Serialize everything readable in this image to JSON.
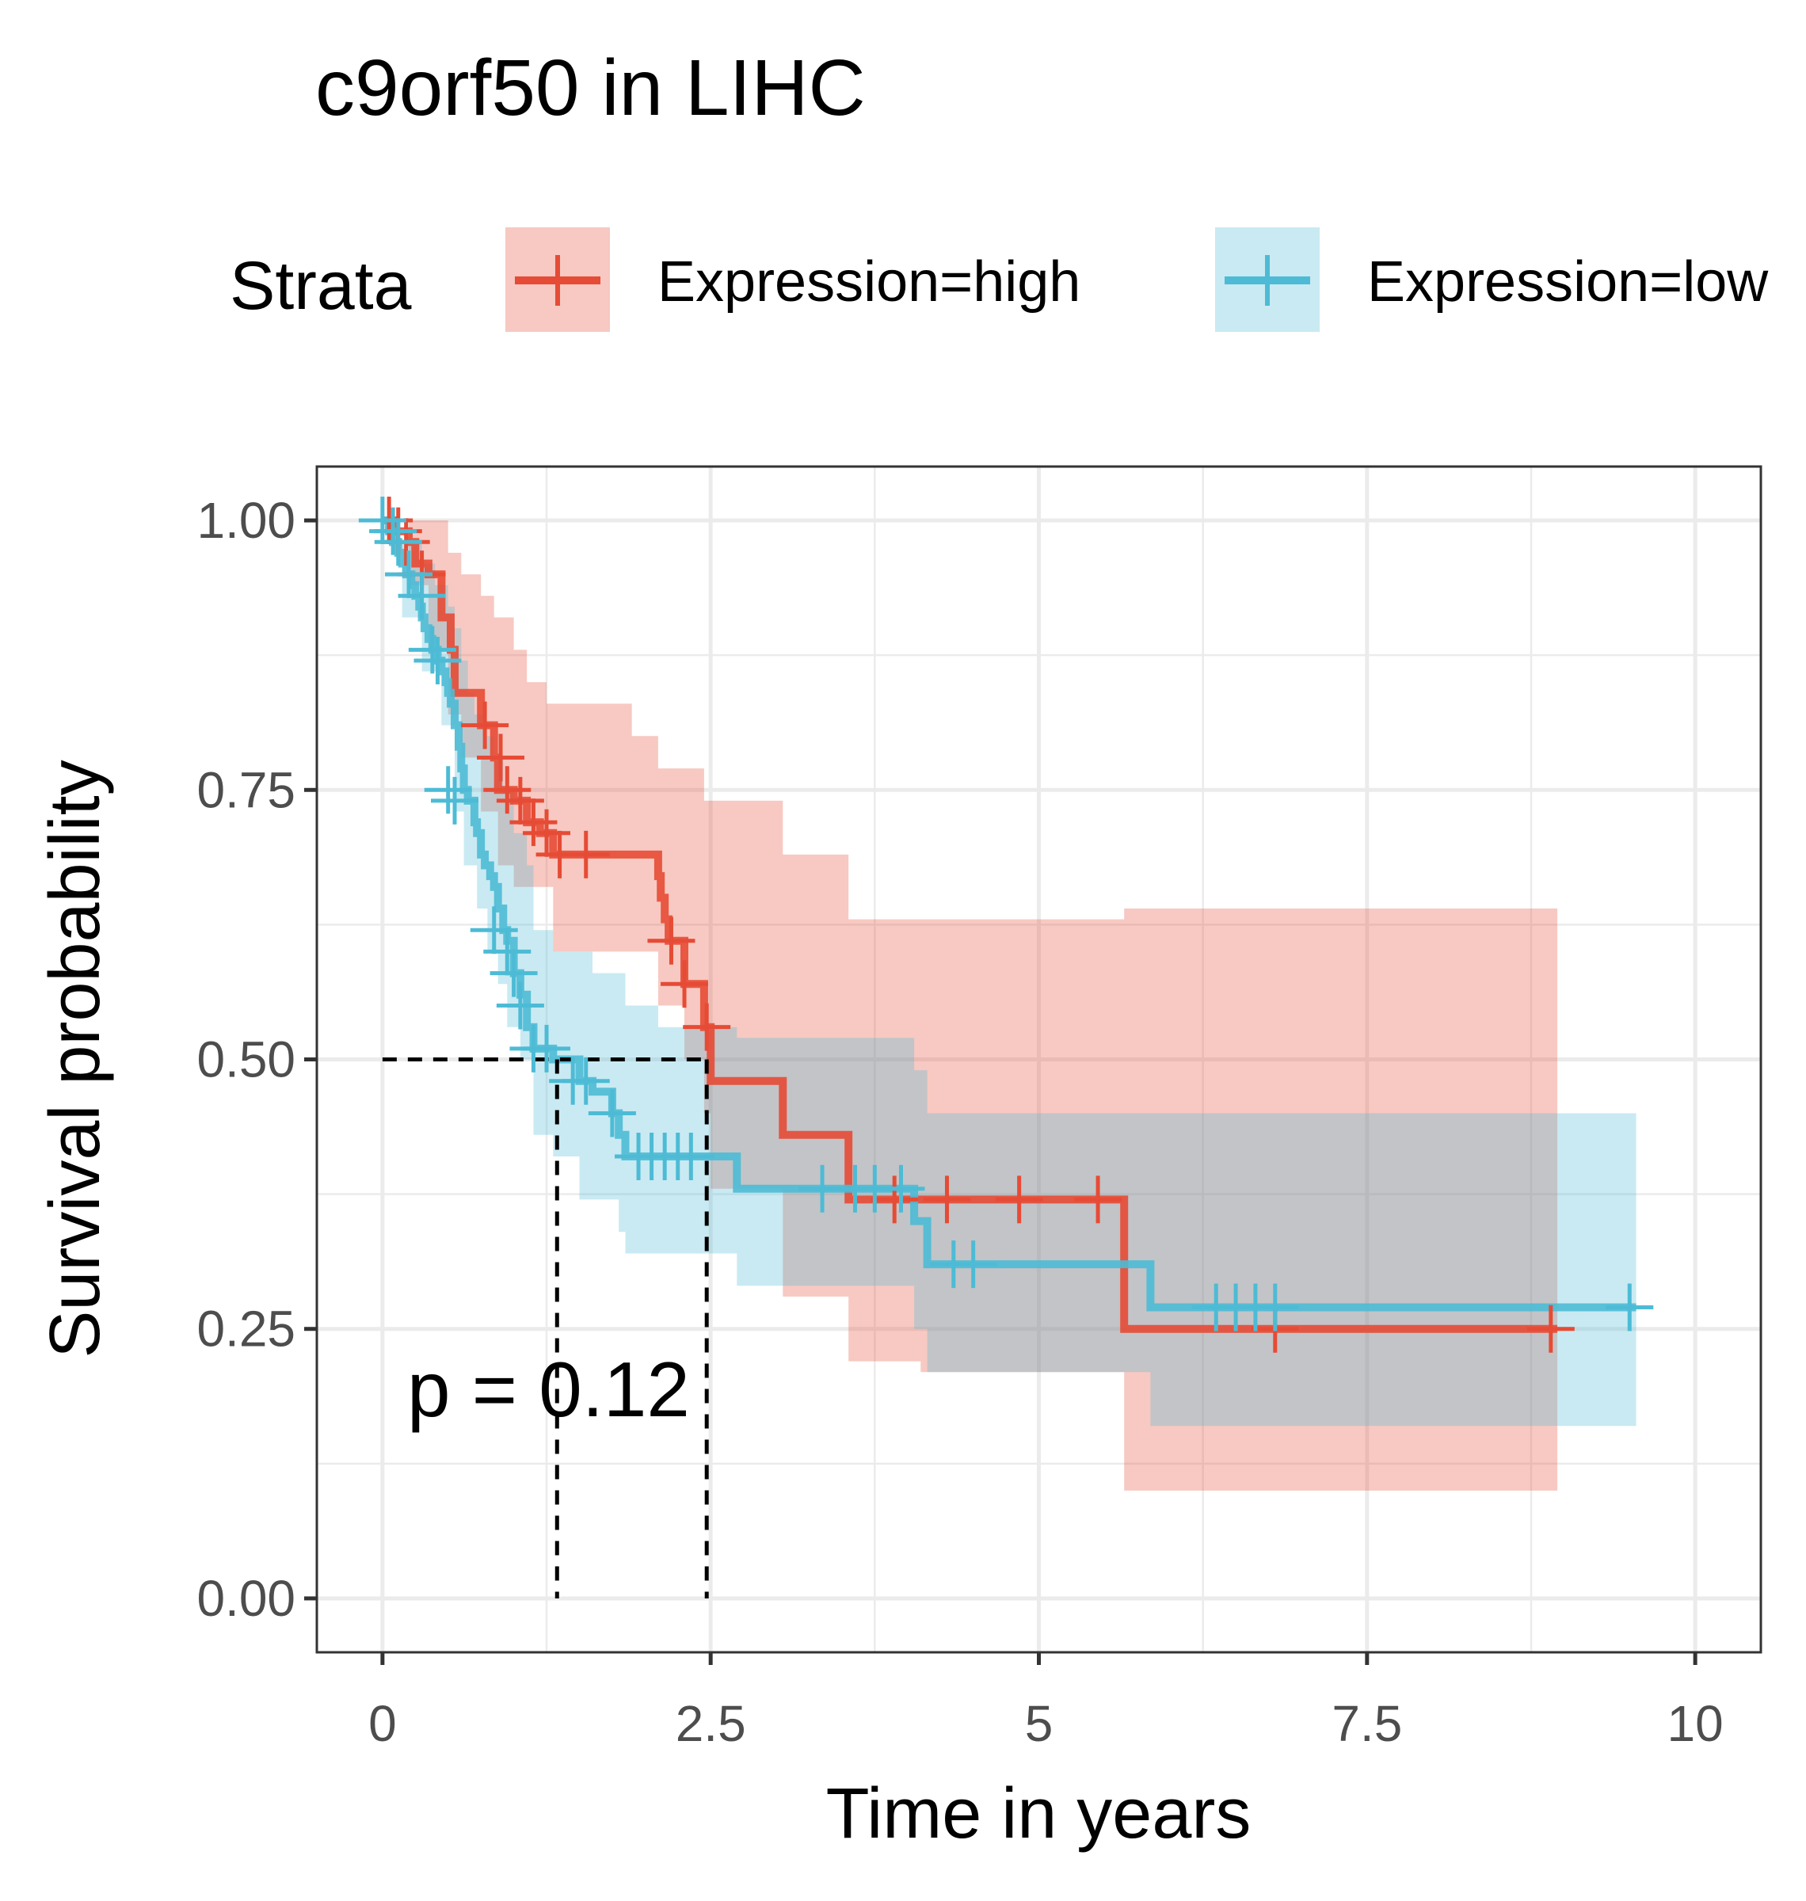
{
  "chart_data": {
    "type": "line",
    "title": "c9orf50 in LIHC",
    "xlabel": "Time in years",
    "ylabel": "Survival probability",
    "xlim": [
      -0.5,
      10.5
    ],
    "ylim": [
      -0.05,
      1.05
    ],
    "x_ticks": [
      0,
      2.5,
      5,
      7.5,
      10
    ],
    "x_tick_labels": [
      "0",
      "2.5",
      "5",
      "7.5",
      "10"
    ],
    "y_ticks": [
      0,
      0.25,
      0.5,
      0.75,
      1.0
    ],
    "y_tick_labels": [
      "0.00",
      "0.25",
      "0.50",
      "0.75",
      "1.00"
    ],
    "grid": true,
    "legend": {
      "title": "Strata",
      "position": "top"
    },
    "annotation": "p = 0.12",
    "median_lines": [
      {
        "x": 1.33,
        "y": 0.5
      },
      {
        "x": 2.47,
        "y": 0.5
      }
    ],
    "series": [
      {
        "name": "Expression=high",
        "color": "#E64B35",
        "steps": [
          [
            0,
            1.0
          ],
          [
            0.1,
            0.99
          ],
          [
            0.2,
            0.98
          ],
          [
            0.25,
            0.96
          ],
          [
            0.35,
            0.95
          ],
          [
            0.45,
            0.91
          ],
          [
            0.52,
            0.88
          ],
          [
            0.55,
            0.84
          ],
          [
            0.75,
            0.81
          ],
          [
            0.85,
            0.78
          ],
          [
            0.88,
            0.75
          ],
          [
            1.0,
            0.74
          ],
          [
            1.1,
            0.72
          ],
          [
            1.2,
            0.71
          ],
          [
            1.3,
            0.69
          ],
          [
            2.1,
            0.67
          ],
          [
            2.12,
            0.65
          ],
          [
            2.15,
            0.63
          ],
          [
            2.18,
            0.61
          ],
          [
            2.3,
            0.57
          ],
          [
            2.45,
            0.53
          ],
          [
            2.5,
            0.48
          ],
          [
            3.05,
            0.43
          ],
          [
            3.55,
            0.37
          ],
          [
            5.65,
            0.25
          ],
          [
            8.95,
            0.25
          ]
        ],
        "ci_upper": [
          [
            0,
            1.0
          ],
          [
            0.35,
            1.0
          ],
          [
            0.5,
            0.97
          ],
          [
            0.6,
            0.95
          ],
          [
            0.75,
            0.93
          ],
          [
            0.85,
            0.91
          ],
          [
            1.0,
            0.88
          ],
          [
            1.1,
            0.85
          ],
          [
            1.25,
            0.83
          ],
          [
            1.9,
            0.8
          ],
          [
            2.1,
            0.77
          ],
          [
            2.45,
            0.74
          ],
          [
            3.05,
            0.69
          ],
          [
            3.55,
            0.63
          ],
          [
            5.65,
            0.64
          ],
          [
            8.95,
            0.64
          ]
        ],
        "ci_lower": [
          [
            0,
            1.0
          ],
          [
            0.2,
            0.94
          ],
          [
            0.35,
            0.88
          ],
          [
            0.5,
            0.82
          ],
          [
            0.6,
            0.78
          ],
          [
            0.75,
            0.73
          ],
          [
            0.88,
            0.68
          ],
          [
            1.0,
            0.66
          ],
          [
            1.3,
            0.6
          ],
          [
            2.1,
            0.55
          ],
          [
            2.3,
            0.5
          ],
          [
            2.45,
            0.45
          ],
          [
            2.5,
            0.38
          ],
          [
            3.05,
            0.28
          ],
          [
            3.55,
            0.22
          ],
          [
            4.1,
            0.21
          ],
          [
            5.65,
            0.1
          ],
          [
            8.95,
            0.1
          ]
        ],
        "censored": [
          [
            0.05,
            1.0
          ],
          [
            0.12,
            0.99
          ],
          [
            0.18,
            0.98
          ],
          [
            0.3,
            0.95
          ],
          [
            0.78,
            0.81
          ],
          [
            0.9,
            0.78
          ],
          [
            0.95,
            0.75
          ],
          [
            1.05,
            0.74
          ],
          [
            1.15,
            0.72
          ],
          [
            1.25,
            0.71
          ],
          [
            1.35,
            0.69
          ],
          [
            1.55,
            0.69
          ],
          [
            2.2,
            0.61
          ],
          [
            2.3,
            0.57
          ],
          [
            2.47,
            0.53
          ],
          [
            3.9,
            0.37
          ],
          [
            4.3,
            0.37
          ],
          [
            4.85,
            0.37
          ],
          [
            5.45,
            0.37
          ],
          [
            6.8,
            0.25
          ],
          [
            8.9,
            0.25
          ]
        ]
      },
      {
        "name": "Expression=low",
        "color": "#4DBBD5",
        "steps": [
          [
            0,
            1.0
          ],
          [
            0.05,
            0.99
          ],
          [
            0.08,
            0.98
          ],
          [
            0.12,
            0.97
          ],
          [
            0.15,
            0.96
          ],
          [
            0.18,
            0.95
          ],
          [
            0.22,
            0.94
          ],
          [
            0.25,
            0.93
          ],
          [
            0.28,
            0.92
          ],
          [
            0.3,
            0.91
          ],
          [
            0.32,
            0.9
          ],
          [
            0.35,
            0.89
          ],
          [
            0.38,
            0.88
          ],
          [
            0.42,
            0.87
          ],
          [
            0.45,
            0.86
          ],
          [
            0.48,
            0.85
          ],
          [
            0.5,
            0.84
          ],
          [
            0.52,
            0.83
          ],
          [
            0.55,
            0.81
          ],
          [
            0.58,
            0.79
          ],
          [
            0.6,
            0.77
          ],
          [
            0.62,
            0.75
          ],
          [
            0.65,
            0.74
          ],
          [
            0.7,
            0.72
          ],
          [
            0.72,
            0.71
          ],
          [
            0.75,
            0.69
          ],
          [
            0.78,
            0.68
          ],
          [
            0.82,
            0.67
          ],
          [
            0.85,
            0.66
          ],
          [
            0.88,
            0.64
          ],
          [
            0.92,
            0.62
          ],
          [
            0.95,
            0.61
          ],
          [
            1.0,
            0.58
          ],
          [
            1.05,
            0.56
          ],
          [
            1.1,
            0.53
          ],
          [
            1.15,
            0.51
          ],
          [
            1.3,
            0.5
          ],
          [
            1.5,
            0.48
          ],
          [
            1.6,
            0.47
          ],
          [
            1.75,
            0.45
          ],
          [
            1.8,
            0.43
          ],
          [
            1.85,
            0.41
          ],
          [
            2.7,
            0.38
          ],
          [
            4.05,
            0.35
          ],
          [
            4.15,
            0.31
          ],
          [
            5.85,
            0.27
          ],
          [
            9.55,
            0.27
          ]
        ],
        "ci_upper": [
          [
            0,
            1.0
          ],
          [
            0.15,
            0.98
          ],
          [
            0.3,
            0.96
          ],
          [
            0.4,
            0.94
          ],
          [
            0.5,
            0.92
          ],
          [
            0.55,
            0.9
          ],
          [
            0.6,
            0.87
          ],
          [
            0.65,
            0.84
          ],
          [
            0.7,
            0.82
          ],
          [
            0.78,
            0.8
          ],
          [
            0.85,
            0.78
          ],
          [
            0.92,
            0.75
          ],
          [
            1.0,
            0.71
          ],
          [
            1.1,
            0.68
          ],
          [
            1.15,
            0.62
          ],
          [
            1.3,
            0.6
          ],
          [
            1.6,
            0.58
          ],
          [
            1.85,
            0.55
          ],
          [
            2.1,
            0.53
          ],
          [
            2.7,
            0.52
          ],
          [
            4.05,
            0.49
          ],
          [
            4.15,
            0.45
          ],
          [
            5.85,
            0.45
          ],
          [
            9.55,
            0.45
          ]
        ],
        "ci_lower": [
          [
            0,
            1.0
          ],
          [
            0.15,
            0.91
          ],
          [
            0.3,
            0.86
          ],
          [
            0.45,
            0.81
          ],
          [
            0.55,
            0.73
          ],
          [
            0.62,
            0.68
          ],
          [
            0.72,
            0.64
          ],
          [
            0.8,
            0.6
          ],
          [
            0.88,
            0.57
          ],
          [
            0.95,
            0.53
          ],
          [
            1.05,
            0.5
          ],
          [
            1.15,
            0.43
          ],
          [
            1.3,
            0.41
          ],
          [
            1.5,
            0.37
          ],
          [
            1.8,
            0.34
          ],
          [
            1.85,
            0.32
          ],
          [
            2.7,
            0.29
          ],
          [
            4.05,
            0.25
          ],
          [
            4.15,
            0.21
          ],
          [
            5.85,
            0.16
          ],
          [
            9.55,
            0.16
          ]
        ],
        "censored": [
          [
            0.0,
            1.0
          ],
          [
            0.08,
            0.99
          ],
          [
            0.12,
            0.98
          ],
          [
            0.2,
            0.95
          ],
          [
            0.3,
            0.93
          ],
          [
            0.38,
            0.88
          ],
          [
            0.42,
            0.87
          ],
          [
            0.5,
            0.75
          ],
          [
            0.55,
            0.74
          ],
          [
            0.85,
            0.62
          ],
          [
            0.95,
            0.6
          ],
          [
            1.0,
            0.58
          ],
          [
            1.05,
            0.55
          ],
          [
            1.15,
            0.51
          ],
          [
            1.25,
            0.51
          ],
          [
            1.45,
            0.48
          ],
          [
            1.55,
            0.48
          ],
          [
            1.75,
            0.45
          ],
          [
            1.95,
            0.41
          ],
          [
            2.05,
            0.41
          ],
          [
            2.15,
            0.41
          ],
          [
            2.25,
            0.41
          ],
          [
            2.35,
            0.41
          ],
          [
            3.35,
            0.38
          ],
          [
            3.6,
            0.38
          ],
          [
            3.75,
            0.38
          ],
          [
            3.95,
            0.38
          ],
          [
            4.35,
            0.31
          ],
          [
            4.5,
            0.31
          ],
          [
            6.35,
            0.27
          ],
          [
            6.5,
            0.27
          ],
          [
            6.65,
            0.27
          ],
          [
            6.8,
            0.27
          ],
          [
            9.5,
            0.27
          ]
        ]
      }
    ]
  }
}
